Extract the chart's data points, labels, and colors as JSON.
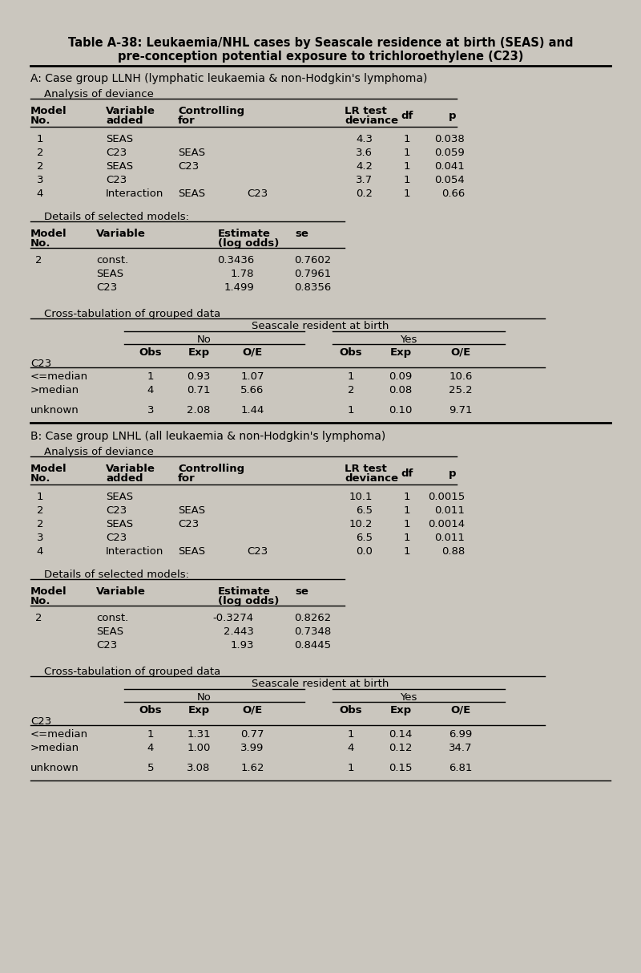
{
  "title_line1": "Table A-38: Leukaemia/NHL cases by Seascale residence at birth (SEAS) and",
  "title_line2": "pre-conception potential exposure to trichloroethylene (C23)",
  "bg_color": "#cac6be",
  "section_a_header": "A: Case group LLNH (lymphatic leukaemia & non-Hodgkin's lymphoma)",
  "section_b_header": "B: Case group LNHL (all leukaemia & non-Hodgkin's lymphoma)",
  "analysis_of_deviance": "Analysis of deviance",
  "details_of_selected_models": "Details of selected models:",
  "cross_tabulation": "Cross-tabulation of grouped data",
  "section_a_deviance": [
    [
      "1",
      "SEAS",
      "",
      "",
      "4.3",
      "1",
      "0.038"
    ],
    [
      "2",
      "C23",
      "SEAS",
      "",
      "3.6",
      "1",
      "0.059"
    ],
    [
      "2",
      "SEAS",
      "C23",
      "",
      "4.2",
      "1",
      "0.041"
    ],
    [
      "3",
      "C23",
      "",
      "",
      "3.7",
      "1",
      "0.054"
    ],
    [
      "4",
      "Interaction",
      "SEAS",
      "C23",
      "0.2",
      "1",
      "0.66"
    ]
  ],
  "section_a_models": [
    [
      "2",
      "const.",
      "0.3436",
      "0.7602"
    ],
    [
      "",
      "SEAS",
      "1.78",
      "0.7961"
    ],
    [
      "",
      "C23",
      "1.499",
      "0.8356"
    ]
  ],
  "section_a_crosstab": [
    [
      "<=median",
      "1",
      "0.93",
      "1.07",
      "1",
      "0.09",
      "10.6"
    ],
    [
      ">median",
      "4",
      "0.71",
      "5.66",
      "2",
      "0.08",
      "25.2"
    ],
    [
      "unknown",
      "3",
      "2.08",
      "1.44",
      "1",
      "0.10",
      "9.71"
    ]
  ],
  "section_b_deviance": [
    [
      "1",
      "SEAS",
      "",
      "",
      "10.1",
      "1",
      "0.0015"
    ],
    [
      "2",
      "C23",
      "SEAS",
      "",
      "6.5",
      "1",
      "0.011"
    ],
    [
      "2",
      "SEAS",
      "C23",
      "",
      "10.2",
      "1",
      "0.0014"
    ],
    [
      "3",
      "C23",
      "",
      "",
      "6.5",
      "1",
      "0.011"
    ],
    [
      "4",
      "Interaction",
      "SEAS",
      "C23",
      "0.0",
      "1",
      "0.88"
    ]
  ],
  "section_b_models": [
    [
      "2",
      "const.",
      "-0.3274",
      "0.8262"
    ],
    [
      "",
      "SEAS",
      "2.443",
      "0.7348"
    ],
    [
      "",
      "C23",
      "1.93",
      "0.8445"
    ]
  ],
  "section_b_crosstab": [
    [
      "<=median",
      "1",
      "1.31",
      "0.77",
      "1",
      "0.14",
      "6.99"
    ],
    [
      ">median",
      "4",
      "1.00",
      "3.99",
      "4",
      "0.12",
      "34.7"
    ],
    [
      "unknown",
      "5",
      "3.08",
      "1.62",
      "1",
      "0.15",
      "6.81"
    ]
  ]
}
